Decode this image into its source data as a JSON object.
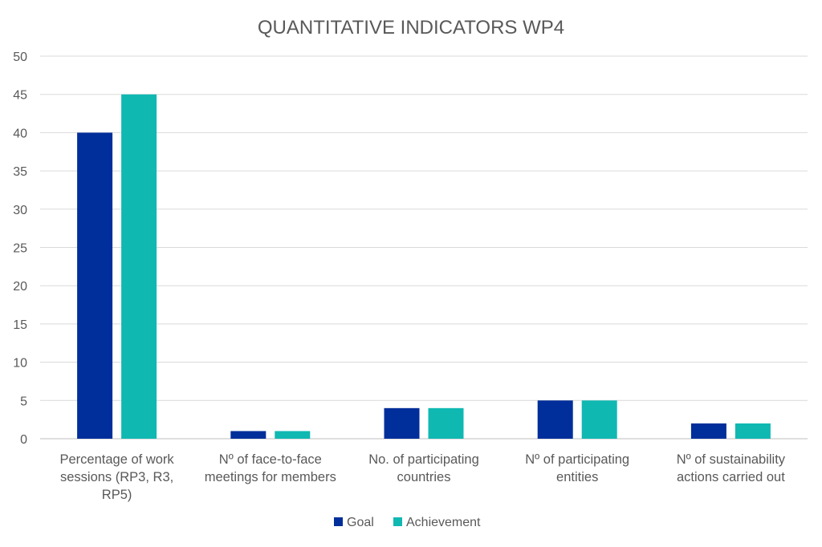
{
  "chart_data": {
    "type": "bar",
    "title": "QUANTITATIVE INDICATORS WP4",
    "xlabel": "",
    "ylabel": "",
    "ylim": [
      0,
      50
    ],
    "yticks": [
      0,
      5,
      10,
      15,
      20,
      25,
      30,
      35,
      40,
      45,
      50
    ],
    "grid": true,
    "legend_position": "bottom",
    "categories": [
      [
        "Percentage of work",
        "sessions (RP3, R3,",
        "RP5)"
      ],
      [
        "Nº of face-to-face",
        "meetings for members"
      ],
      [
        "No. of participating",
        "countries"
      ],
      [
        "Nº of participating",
        "entities"
      ],
      [
        "Nº of sustainability",
        "actions carried out"
      ]
    ],
    "series": [
      {
        "name": "Goal",
        "color": "#002e9a",
        "values": [
          40,
          1,
          4,
          5,
          2
        ]
      },
      {
        "name": "Achievement",
        "color": "#10b8b2",
        "values": [
          45,
          1,
          4,
          5,
          2
        ]
      }
    ]
  }
}
